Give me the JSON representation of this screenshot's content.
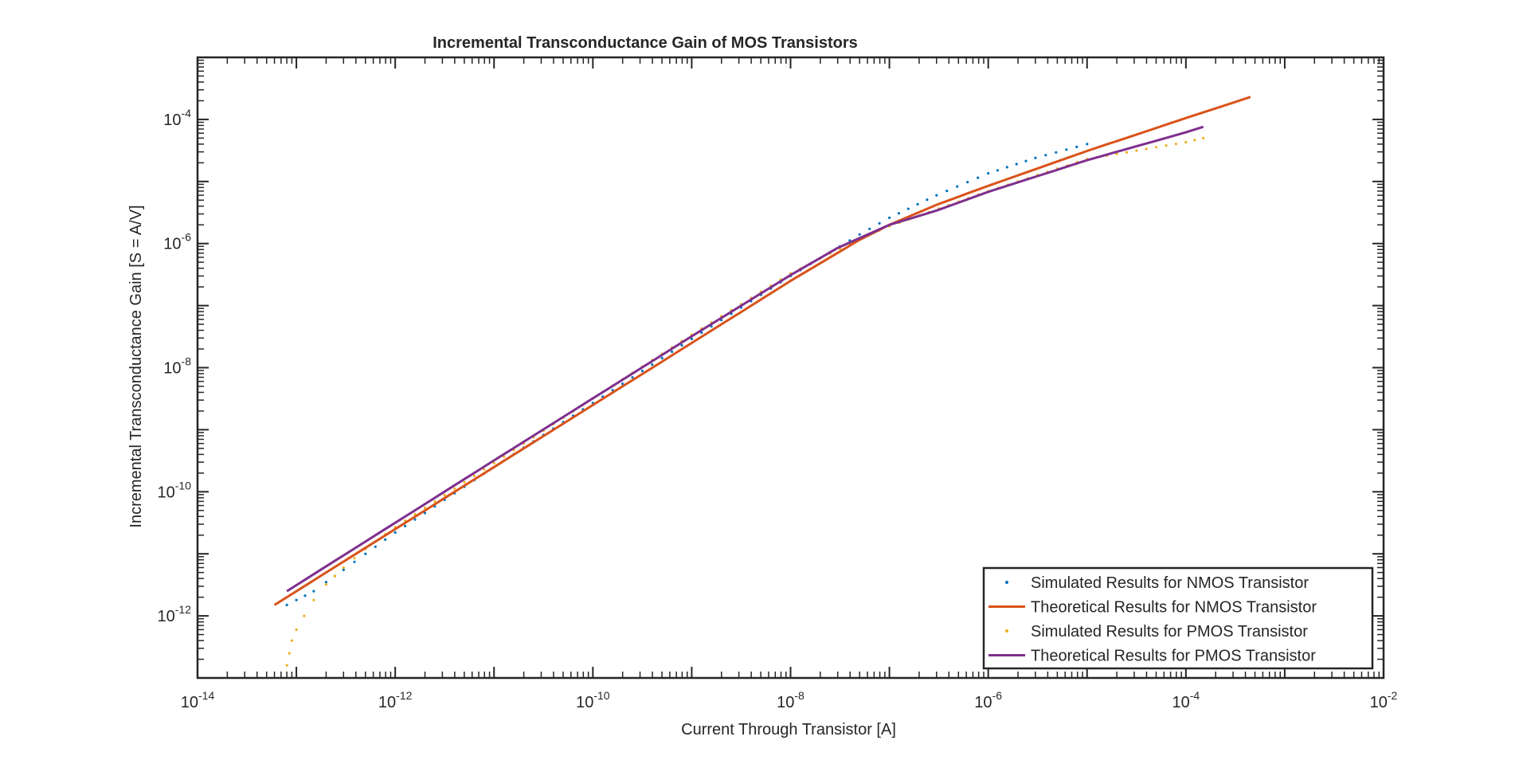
{
  "chart_data": {
    "type": "scatter",
    "title": "Incremental Transconductance Gain of MOS Transistors",
    "xlabel": "Current Through Transistor [A]",
    "ylabel": "Incremental Transconductance Gain [S = A/V]",
    "xscale": "log",
    "yscale": "log",
    "xlim": [
      1e-14,
      0.01
    ],
    "ylim": [
      1e-13,
      0.001
    ],
    "xticks": [
      {
        "value": 1e-14,
        "base": "10",
        "exp": "-14"
      },
      {
        "value": 1e-12,
        "base": "10",
        "exp": "-12"
      },
      {
        "value": 1e-10,
        "base": "10",
        "exp": "-10"
      },
      {
        "value": 1e-08,
        "base": "10",
        "exp": "-8"
      },
      {
        "value": 1e-06,
        "base": "10",
        "exp": "-6"
      },
      {
        "value": 0.0001,
        "base": "10",
        "exp": "-4"
      },
      {
        "value": 0.01,
        "base": "10",
        "exp": "-2"
      }
    ],
    "yticks": [
      {
        "value": 1e-12,
        "base": "10",
        "exp": "-12"
      },
      {
        "value": 1e-10,
        "base": "10",
        "exp": "-10"
      },
      {
        "value": 1e-08,
        "base": "10",
        "exp": "-8"
      },
      {
        "value": 1e-06,
        "base": "10",
        "exp": "-6"
      },
      {
        "value": 0.0001,
        "base": "10",
        "exp": "-4"
      }
    ],
    "grid": false,
    "box": true,
    "legend_position": "bottom-right",
    "series": [
      {
        "name": "Simulated Results for NMOS Transistor",
        "style": "dots",
        "color": "#0072BD",
        "x": [
          8e-14,
          1e-13,
          1.5e-13,
          2e-13,
          3e-13,
          5e-13,
          1e-12,
          1e-11,
          1e-10,
          1e-09,
          1e-08,
          5e-08,
          1e-07,
          3e-07,
          1e-06,
          3e-06,
          1e-05
        ],
        "y": [
          1.5e-12,
          1.8e-12,
          2.5e-12,
          3.5e-12,
          5.5e-12,
          1e-11,
          2.2e-11,
          2.5e-10,
          2.7e-09,
          2.9e-08,
          3e-07,
          1.4e-06,
          2.6e-06,
          6e-06,
          1.35e-05,
          2.4e-05,
          4e-05
        ]
      },
      {
        "name": "Theoretical Results for NMOS Transistor",
        "style": "line",
        "color": "#D95319",
        "x": [
          6e-14,
          1e-11,
          1e-09,
          1e-08,
          5e-08,
          1e-07,
          3e-07,
          1e-06,
          1e-05,
          0.0001,
          0.00045
        ],
        "y": [
          1.5e-12,
          2.5e-10,
          2.5e-08,
          2.5e-07,
          1.15e-06,
          2e-06,
          4.2e-06,
          8.5e-06,
          3.1e-05,
          0.000105,
          0.00023
        ]
      },
      {
        "name": "Simulated Results for PMOS Transistor",
        "style": "dots",
        "color": "#EDB120",
        "x": [
          8e-14,
          8.5e-14,
          9e-14,
          1e-13,
          1.2e-13,
          1.5e-13,
          2e-13,
          3e-13,
          5e-13,
          1e-12,
          1e-11,
          1e-10,
          1e-09,
          1e-08,
          5e-08,
          1e-07,
          1e-06,
          1e-05,
          0.0001,
          0.00015
        ],
        "y": [
          1.6e-13,
          2.5e-13,
          4e-13,
          6e-13,
          1e-12,
          1.8e-12,
          3.2e-12,
          6e-12,
          1.2e-11,
          2.7e-11,
          2.9e-10,
          3.2e-09,
          3.4e-08,
          3.3e-07,
          1.2e-06,
          1.9e-06,
          7e-06,
          2.3e-05,
          4.3e-05,
          5e-05
        ]
      },
      {
        "name": "Theoretical Results for PMOS Transistor",
        "style": "line",
        "color": "#7E2F8E",
        "x": [
          8e-14,
          1e-11,
          1e-09,
          1e-08,
          3e-08,
          1e-07,
          3e-07,
          1e-06,
          1e-05,
          0.0001,
          0.00015
        ],
        "y": [
          2.5e-12,
          3.2e-10,
          3.2e-08,
          3.1e-07,
          8.5e-07,
          2e-06,
          3.4e-06,
          6.8e-06,
          2.2e-05,
          6.2e-05,
          7.6e-05
        ]
      }
    ]
  }
}
